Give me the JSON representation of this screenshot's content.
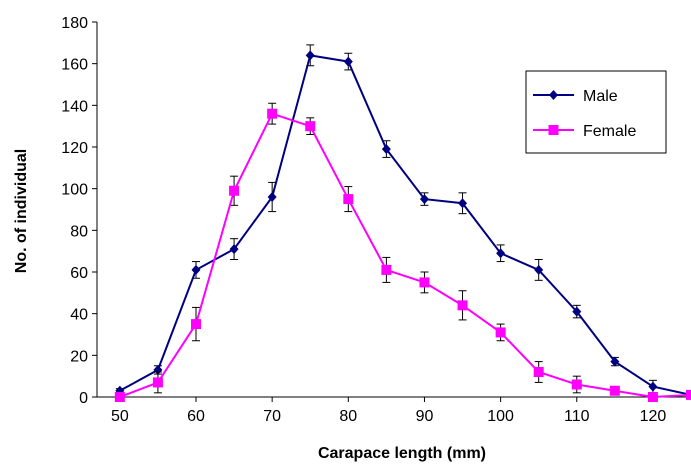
{
  "chart_data": {
    "type": "line",
    "title": "",
    "xlabel": "Carapace length (mm)",
    "ylabel": "No. of individual",
    "xlim": [
      47,
      125
    ],
    "ylim": [
      0,
      180
    ],
    "x_ticks": [
      "50",
      "60",
      "70",
      "80",
      "90",
      "100",
      "110",
      "120"
    ],
    "y_ticks": [
      "0",
      "20",
      "40",
      "60",
      "80",
      "100",
      "120",
      "140",
      "160",
      "180"
    ],
    "grid": false,
    "legend_position": "top-right",
    "x": [
      50,
      55,
      60,
      65,
      70,
      75,
      80,
      85,
      90,
      95,
      100,
      105,
      110,
      115,
      120,
      125
    ],
    "series": [
      {
        "name": "Male",
        "color": "#000080",
        "marker": "diamond",
        "values": [
          3,
          13,
          61,
          71,
          96,
          164,
          161,
          119,
          95,
          93,
          69,
          61,
          41,
          17,
          5,
          1
        ],
        "errors": [
          1,
          2,
          4,
          5,
          7,
          5,
          4,
          4,
          3,
          5,
          4,
          5,
          3,
          2,
          3,
          1
        ]
      },
      {
        "name": "Female",
        "color": "#FF00FF",
        "marker": "square",
        "values": [
          0,
          7,
          35,
          99,
          136,
          130,
          95,
          61,
          55,
          44,
          31,
          12,
          6,
          3,
          0,
          1
        ],
        "errors": [
          1,
          5,
          8,
          7,
          5,
          4,
          6,
          6,
          5,
          7,
          4,
          5,
          4,
          1,
          1,
          1
        ]
      }
    ]
  }
}
